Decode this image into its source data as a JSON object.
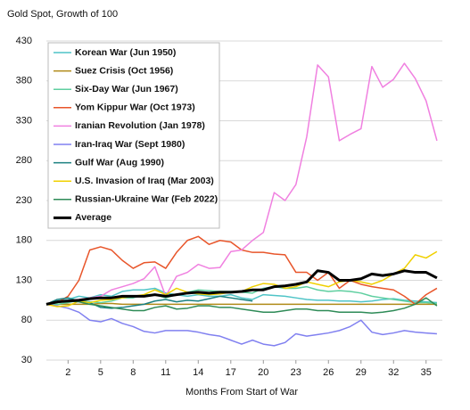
{
  "chart_data": {
    "type": "line",
    "title": "Gold Spot, Growth of 100",
    "x_label": "Months From Start of War",
    "x": [
      0,
      1,
      2,
      3,
      4,
      5,
      6,
      7,
      8,
      9,
      10,
      11,
      12,
      13,
      14,
      15,
      16,
      17,
      18,
      19,
      20,
      21,
      22,
      23,
      24,
      25,
      26,
      27,
      28,
      29,
      30,
      31,
      32,
      33,
      34,
      35,
      36
    ],
    "xlim": [
      0,
      36.5
    ],
    "xticks": [
      2,
      5,
      8,
      11,
      14,
      17,
      20,
      23,
      26,
      29,
      32,
      35
    ],
    "ylim": [
      30,
      430
    ],
    "yticks": [
      30,
      80,
      130,
      180,
      230,
      280,
      330,
      380,
      430
    ],
    "grid": true,
    "legend": "top-left",
    "series": [
      {
        "name": "Korean War (Jun 1950)",
        "color": "#4fc4c7",
        "width": 1.5,
        "values": [
          100,
          104,
          106,
          110,
          108,
          112,
          110,
          116,
          118,
          118,
          120,
          114,
          112,
          110,
          112,
          110,
          110,
          112,
          108,
          106,
          112,
          111,
          110,
          108,
          106,
          105,
          105,
          104,
          104,
          103,
          104,
          106,
          107,
          105,
          104,
          103,
          102
        ]
      },
      {
        "name": "Suez Crisis (Oct 1956)",
        "color": "#b08a18",
        "width": 1.5,
        "values": [
          100,
          100,
          100,
          100,
          100,
          101,
          101,
          100,
          100,
          100,
          100,
          100,
          100,
          100,
          100,
          100,
          100,
          100,
          100,
          100,
          100,
          100,
          100,
          100,
          100,
          100,
          100,
          100,
          100,
          100,
          100,
          100,
          100,
          100,
          100,
          100,
          100
        ]
      },
      {
        "name": "Six-Day War (Jun 1967)",
        "color": "#5fcfa0",
        "width": 1.5,
        "values": [
          100,
          100,
          102,
          105,
          103,
          102,
          104,
          108,
          108,
          112,
          112,
          108,
          112,
          115,
          118,
          117,
          116,
          116,
          115,
          114,
          120,
          122,
          120,
          120,
          122,
          118,
          116,
          117,
          116,
          114,
          110,
          108,
          106,
          104,
          102,
          102,
          101
        ]
      },
      {
        "name": "Yom Kippur War (Oct 1973)",
        "color": "#e8552a",
        "width": 1.5,
        "values": [
          100,
          102,
          110,
          130,
          168,
          172,
          168,
          155,
          145,
          152,
          153,
          145,
          165,
          180,
          185,
          175,
          180,
          178,
          168,
          165,
          165,
          163,
          162,
          140,
          140,
          130,
          140,
          120,
          130,
          125,
          122,
          120,
          118,
          110,
          100,
          112,
          120
        ]
      },
      {
        "name": "Iranian Revolution (Jan 1978)",
        "color": "#f080e0",
        "width": 1.5,
        "values": [
          100,
          103,
          105,
          106,
          108,
          110,
          118,
          122,
          126,
          132,
          147,
          110,
          135,
          140,
          150,
          145,
          146,
          166,
          168,
          180,
          190,
          240,
          230,
          250,
          310,
          400,
          385,
          305,
          313,
          320,
          398,
          372,
          382,
          402,
          383,
          355,
          305
        ]
      },
      {
        "name": "Iran-Iraq War (Sept 1980)",
        "color": "#8080f0",
        "width": 1.5,
        "values": [
          100,
          98,
          95,
          90,
          80,
          78,
          82,
          76,
          72,
          66,
          64,
          67,
          67,
          67,
          65,
          62,
          60,
          55,
          50,
          55,
          50,
          48,
          52,
          63,
          60,
          62,
          64,
          67,
          72,
          80,
          65,
          62,
          64,
          67,
          65,
          64,
          63
        ]
      },
      {
        "name": "Gulf War (Aug 1990)",
        "color": "#1a8080",
        "width": 1.5,
        "values": [
          100,
          106,
          108,
          104,
          102,
          96,
          95,
          96,
          98,
          100,
          104,
          106,
          103,
          105,
          104,
          107,
          110,
          108,
          106,
          104,
          null,
          null,
          null,
          null,
          null,
          null,
          null,
          null,
          null,
          null,
          null,
          null,
          null,
          null,
          null,
          null,
          null
        ]
      },
      {
        "name": "U.S. Invasion of Iraq (Mar 2003)",
        "color": "#f0d000",
        "width": 1.5,
        "values": [
          100,
          97,
          98,
          104,
          102,
          105,
          106,
          108,
          110,
          112,
          118,
          112,
          120,
          115,
          113,
          112,
          113,
          115,
          116,
          122,
          126,
          125,
          120,
          122,
          128,
          125,
          122,
          128,
          130,
          128,
          125,
          130,
          138,
          145,
          162,
          158,
          166
        ]
      },
      {
        "name": "Russian-Ukraine War (Feb 2022)",
        "color": "#2e8b57",
        "width": 1.5,
        "values": [
          100,
          102,
          104,
          103,
          100,
          98,
          96,
          94,
          92,
          92,
          96,
          98,
          94,
          95,
          98,
          98,
          96,
          96,
          94,
          92,
          90,
          90,
          92,
          94,
          94,
          92,
          92,
          90,
          90,
          90,
          89,
          90,
          92,
          95,
          100,
          108,
          98
        ]
      },
      {
        "name": "Average",
        "color": "#000000",
        "width": 3,
        "values": [
          100,
          103,
          104,
          105,
          107,
          108,
          108,
          110,
          110,
          110,
          112,
          110,
          112,
          114,
          115,
          114,
          115,
          115,
          116,
          118,
          118,
          122,
          123,
          125,
          128,
          142,
          140,
          130,
          130,
          132,
          138,
          136,
          138,
          142,
          140,
          140,
          133
        ]
      }
    ]
  }
}
